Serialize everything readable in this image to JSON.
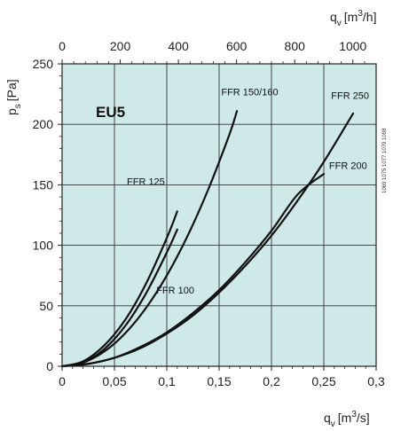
{
  "chart_data": {
    "type": "line",
    "badge": "EU5",
    "code": "1069 1075 1077 1079 1098",
    "x_bottom": {
      "unit_base": "q",
      "unit_sub": "v",
      "unit_bracket": "[m",
      "unit_sup": "3",
      "unit_tail": "/s]",
      "range": [
        0,
        0.3
      ],
      "ticks": [
        0,
        0.05,
        0.1,
        0.15,
        0.2,
        0.25,
        0.3
      ],
      "tick_labels": [
        "0",
        "0,05",
        "0,1",
        "0,15",
        "0,2",
        "0,25",
        "0,3"
      ]
    },
    "x_top": {
      "unit_base": "q",
      "unit_sub": "v",
      "unit_bracket": "[m",
      "unit_sup": "3",
      "unit_tail": "/h]",
      "range": [
        0,
        1080
      ],
      "ticks": [
        0,
        200,
        400,
        600,
        800,
        1000
      ],
      "tick_labels": [
        "0",
        "200",
        "400",
        "600",
        "800",
        "1000"
      ]
    },
    "y_axis": {
      "unit_base": "p",
      "unit_sub": "s",
      "unit_tail": "[Pa]",
      "range": [
        0,
        250
      ],
      "ticks": [
        0,
        50,
        100,
        150,
        200,
        250
      ],
      "tick_labels": [
        "0",
        "50",
        "100",
        "150",
        "200",
        "250"
      ]
    },
    "grid": true,
    "series": [
      {
        "name": "FFR 125",
        "x": [
          0,
          0.02,
          0.04,
          0.06,
          0.08,
          0.1,
          0.11
        ],
        "y": [
          0,
          4,
          17,
          38,
          68,
          106,
          128
        ]
      },
      {
        "name": "FFR 100",
        "x": [
          0,
          0.02,
          0.04,
          0.06,
          0.08,
          0.1,
          0.11
        ],
        "y": [
          0,
          3,
          14,
          33,
          60,
          94,
          113
        ]
      },
      {
        "name": "FFR 150/160",
        "x": [
          0,
          0.02,
          0.04,
          0.06,
          0.08,
          0.1,
          0.12,
          0.14,
          0.16,
          0.167
        ],
        "y": [
          0,
          3,
          12,
          27,
          48,
          75,
          108,
          147,
          192,
          211
        ]
      },
      {
        "name": "FFR 250",
        "x": [
          0,
          0.025,
          0.05,
          0.075,
          0.1,
          0.125,
          0.15,
          0.175,
          0.2,
          0.225,
          0.25,
          0.278
        ],
        "y": [
          0,
          2,
          7,
          15,
          27,
          42,
          61,
          83,
          108,
          137,
          169,
          209
        ]
      },
      {
        "name": "FFR 200",
        "x": [
          0,
          0.025,
          0.05,
          0.075,
          0.1,
          0.125,
          0.15,
          0.175,
          0.2,
          0.225,
          0.25
        ],
        "y": [
          0,
          2,
          7,
          16,
          28,
          44,
          63,
          86,
          112,
          142,
          159
        ]
      }
    ]
  }
}
